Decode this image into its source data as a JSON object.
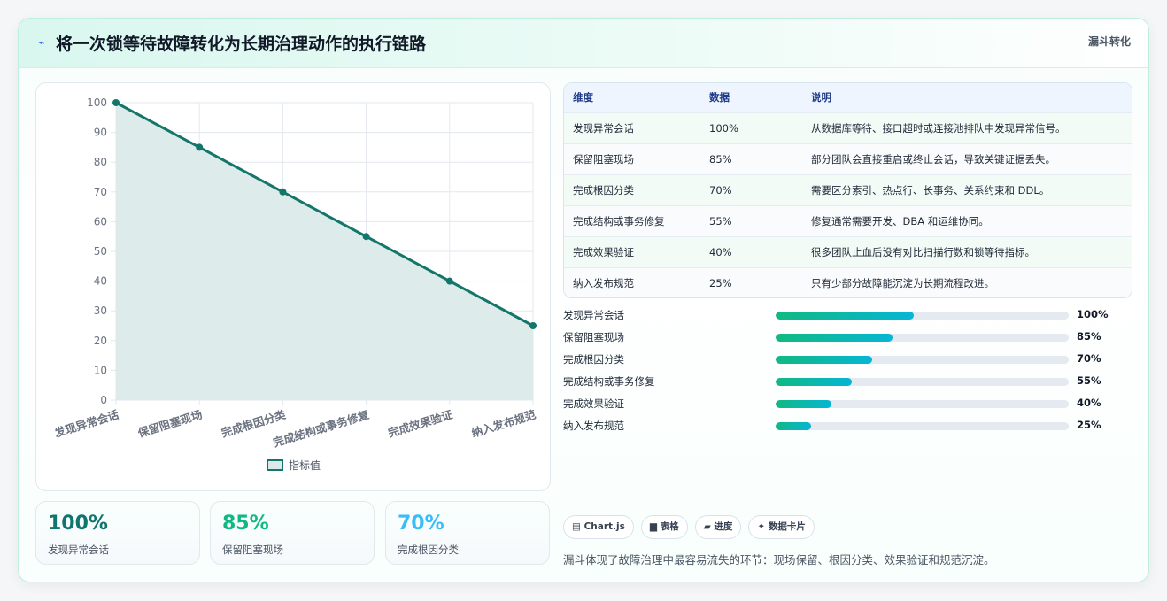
{
  "header": {
    "icon": "lightning-icon",
    "title": "将一次锁等待故障转化为长期治理动作的执行链路",
    "tag": "漏斗转化"
  },
  "chart_data": {
    "type": "line",
    "categories": [
      "发现异常会话",
      "保留阻塞现场",
      "完成根因分类",
      "完成结构或事务修复",
      "完成效果验证",
      "纳入发布规范"
    ],
    "series": [
      {
        "name": "指标值",
        "values": [
          100,
          85,
          70,
          55,
          40,
          25
        ]
      }
    ],
    "ylim": [
      0,
      100
    ],
    "yticks": [
      0,
      10,
      20,
      30,
      40,
      50,
      60,
      70,
      80,
      90,
      100
    ],
    "grid": true,
    "fill": true,
    "legend": "bottom",
    "colors": {
      "line": "#14766a",
      "fill": "#dbeae9"
    }
  },
  "stats": [
    {
      "value": "100%",
      "label": "发现异常会话",
      "color": "#0f766e"
    },
    {
      "value": "85%",
      "label": "保留阻塞现场",
      "color": "#10b981"
    },
    {
      "value": "70%",
      "label": "完成根因分类",
      "color": "#38bdf8"
    }
  ],
  "table": {
    "headers": [
      "维度",
      "数据",
      "说明"
    ],
    "rows": [
      [
        "发现异常会话",
        "100%",
        "从数据库等待、接口超时或连接池排队中发现异常信号。"
      ],
      [
        "保留阻塞现场",
        "85%",
        "部分团队会直接重启或终止会话，导致关键证据丢失。"
      ],
      [
        "完成根因分类",
        "70%",
        "需要区分索引、热点行、长事务、关系约束和 DDL。"
      ],
      [
        "完成结构或事务修复",
        "55%",
        "修复通常需要开发、DBA 和运维协同。"
      ],
      [
        "完成效果验证",
        "40%",
        "很多团队止血后没有对比扫描行数和锁等待指标。"
      ],
      [
        "纳入发布规范",
        "25%",
        "只有少部分故障能沉淀为长期流程改进。"
      ]
    ]
  },
  "progress": [
    {
      "label": "发现异常会话",
      "value": 100,
      "display": "100%",
      "fraction": 0.47
    },
    {
      "label": "保留阻塞现场",
      "value": 85,
      "display": "85%",
      "fraction": 0.4
    },
    {
      "label": "完成根因分类",
      "value": 70,
      "display": "70%",
      "fraction": 0.33
    },
    {
      "label": "完成结构或事务修复",
      "value": 55,
      "display": "55%",
      "fraction": 0.26
    },
    {
      "label": "完成效果验证",
      "value": 40,
      "display": "40%",
      "fraction": 0.19
    },
    {
      "label": "纳入发布规范",
      "value": 25,
      "display": "25%",
      "fraction": 0.12
    }
  ],
  "chips": [
    {
      "icon": "chart-icon",
      "glyph": "▤",
      "label": "Chart.js"
    },
    {
      "icon": "table-icon",
      "glyph": "▆",
      "label": "表格"
    },
    {
      "icon": "progress-icon",
      "glyph": "▰",
      "label": "进度"
    },
    {
      "icon": "sparkle-icon",
      "glyph": "✦",
      "label": "数据卡片"
    }
  ],
  "footer": "漏斗体现了故障治理中最容易流失的环节：现场保留、根因分类、效果验证和规范沉淀。"
}
